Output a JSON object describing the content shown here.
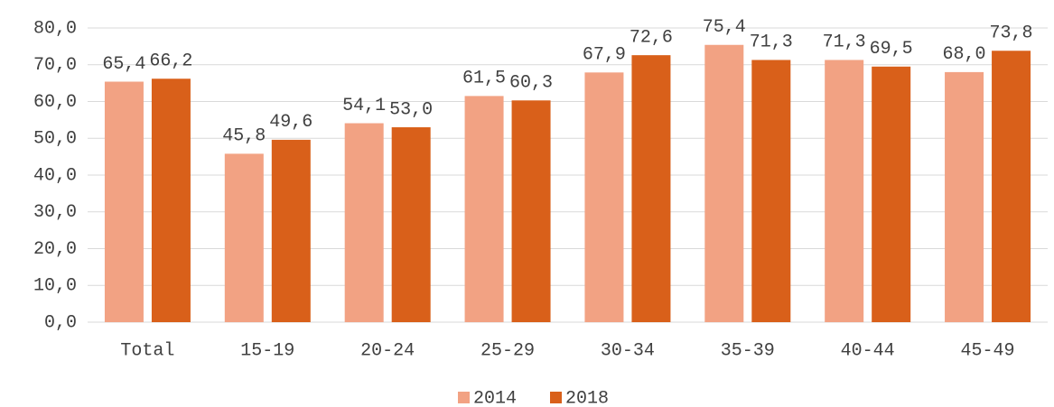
{
  "chart_data": {
    "type": "bar",
    "categories": [
      "Total",
      "15-19",
      "20-24",
      "25-29",
      "30-34",
      "35-39",
      "40-44",
      "45-49"
    ],
    "series": [
      {
        "name": "2014",
        "color": "#f2a283",
        "values": [
          65.4,
          45.8,
          54.1,
          61.5,
          67.9,
          75.4,
          71.3,
          68.0
        ],
        "value_labels": [
          "65,4",
          "45,8",
          "54,1",
          "61,5",
          "67,9",
          "75,4",
          "71,3",
          "68,0"
        ]
      },
      {
        "name": "2018",
        "color": "#d9601a",
        "values": [
          66.2,
          49.6,
          53.0,
          60.3,
          72.6,
          71.3,
          69.5,
          73.8
        ],
        "value_labels": [
          "66,2",
          "49,6",
          "53,0",
          "60,3",
          "72,6",
          "71,3",
          "69,5",
          "73,8"
        ]
      }
    ],
    "ylim": [
      0,
      80
    ],
    "yticks": [
      {
        "value": 0,
        "label": "0,0"
      },
      {
        "value": 10,
        "label": "10,0"
      },
      {
        "value": 20,
        "label": "20,0"
      },
      {
        "value": 30,
        "label": "30,0"
      },
      {
        "value": 40,
        "label": "40,0"
      },
      {
        "value": 50,
        "label": "50,0"
      },
      {
        "value": 60,
        "label": "60,0"
      },
      {
        "value": 70,
        "label": "70,0"
      },
      {
        "value": 80,
        "label": "80,0"
      }
    ],
    "grid": true,
    "legend": "bottom"
  }
}
